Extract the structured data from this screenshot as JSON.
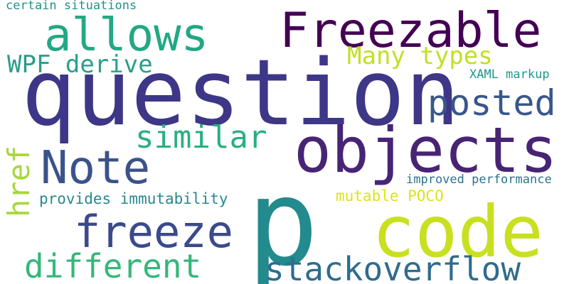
{
  "words": [
    {
      "text": "certain situations",
      "color": "#21918c"
    },
    {
      "text": "allows",
      "color": "#22a884"
    },
    {
      "text": "Freezable",
      "color": "#440154"
    },
    {
      "text": "WPF derive",
      "color": "#2a9e8a"
    },
    {
      "text": "Many types",
      "color": "#c2df23"
    },
    {
      "text": "XAML markup",
      "color": "#1f968b"
    },
    {
      "text": "question",
      "color": "#3e3686"
    },
    {
      "text": "posted",
      "color": "#39568c"
    },
    {
      "text": "href",
      "color": "#a7d83c"
    },
    {
      "text": "similar",
      "color": "#29af7f"
    },
    {
      "text": "objects",
      "color": "#482475"
    },
    {
      "text": "Note",
      "color": "#3b528b"
    },
    {
      "text": "improved performance",
      "color": "#2c728e"
    },
    {
      "text": "provides immutability",
      "color": "#27898e"
    },
    {
      "text": "mutable POCO",
      "color": "#dde318"
    },
    {
      "text": "p",
      "color": "#238a8d"
    },
    {
      "text": "code",
      "color": "#c8e020"
    },
    {
      "text": "freeze",
      "color": "#3a4a8c"
    },
    {
      "text": "different",
      "color": "#35b779"
    },
    {
      "text": "stackoverflow",
      "color": "#2f6c8e"
    }
  ]
}
